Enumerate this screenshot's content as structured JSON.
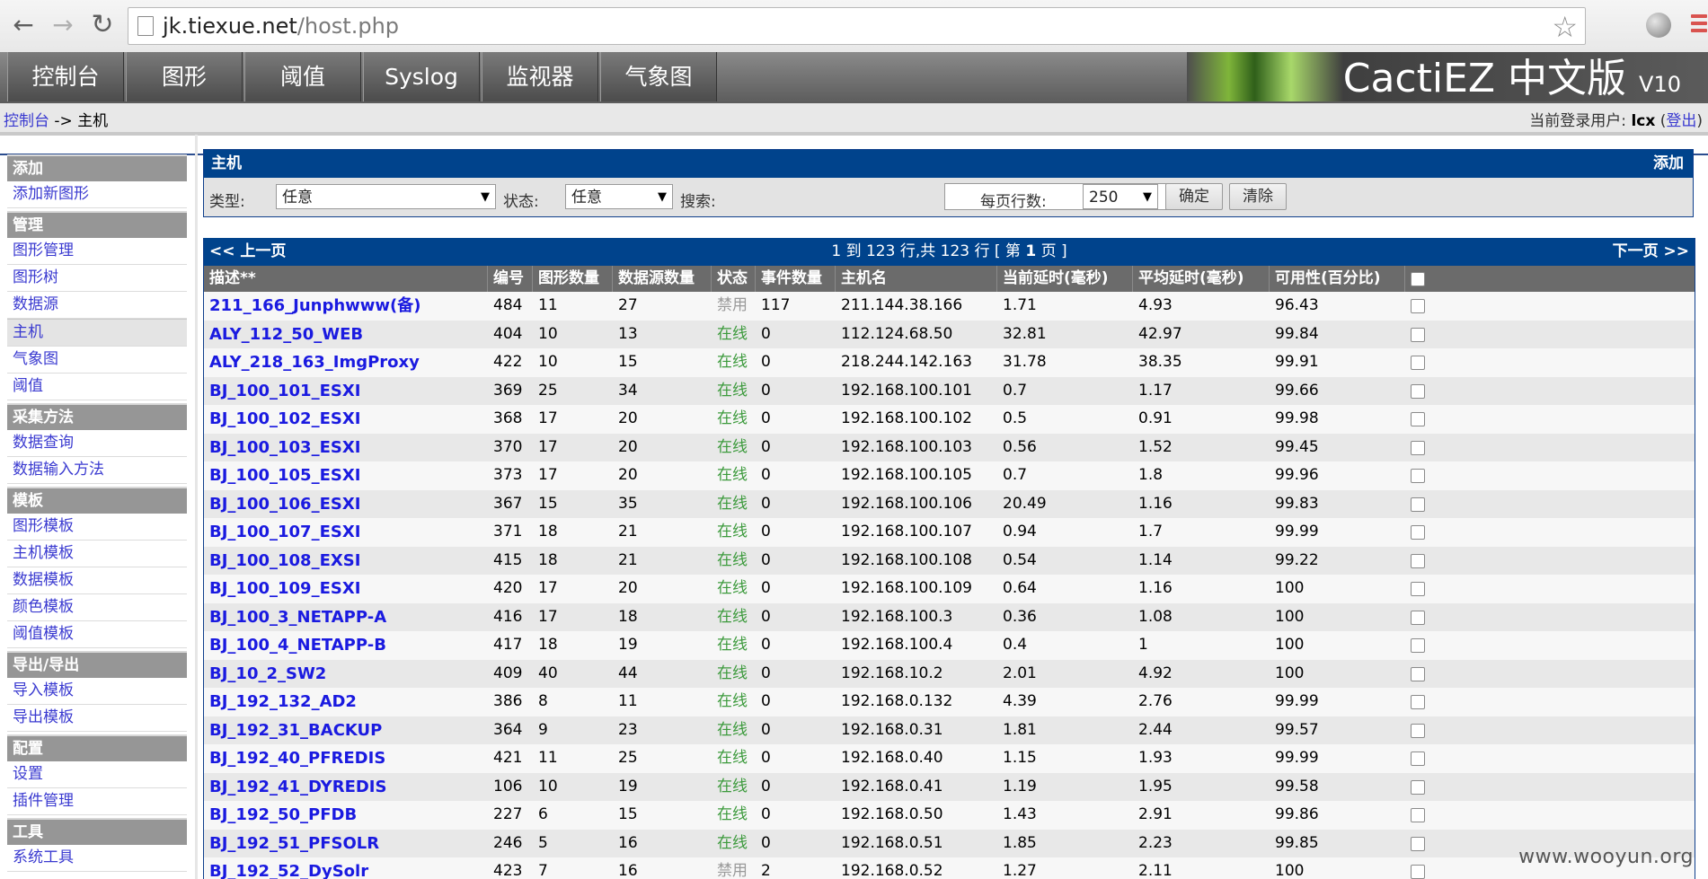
{
  "browser": {
    "url_host": "jk.tiexue.net",
    "url_path": "/host.php"
  },
  "tabs": [
    {
      "label": "控制台"
    },
    {
      "label": "图形"
    },
    {
      "label": "阈值"
    },
    {
      "label": "Syslog"
    },
    {
      "label": "监视器"
    },
    {
      "label": "气象图"
    }
  ],
  "brand": {
    "title": "CactiEZ 中文版",
    "version": "V10"
  },
  "breadcrumb": {
    "root": "控制台",
    "sep": " -> ",
    "current": "主机"
  },
  "login": {
    "prefix": "当前登录用户: ",
    "user": "lcx",
    "logout": "登出"
  },
  "sidebar": [
    {
      "type": "head",
      "label": "添加"
    },
    {
      "type": "item",
      "label": "添加新图形"
    },
    {
      "type": "head",
      "label": "管理"
    },
    {
      "type": "item",
      "label": "图形管理"
    },
    {
      "type": "item",
      "label": "图形树"
    },
    {
      "type": "item",
      "label": "数据源"
    },
    {
      "type": "item",
      "label": "主机",
      "active": true
    },
    {
      "type": "item",
      "label": "气象图"
    },
    {
      "type": "item",
      "label": "阈值"
    },
    {
      "type": "head",
      "label": "采集方法"
    },
    {
      "type": "item",
      "label": "数据查询"
    },
    {
      "type": "item",
      "label": "数据输入方法"
    },
    {
      "type": "head",
      "label": "模板"
    },
    {
      "type": "item",
      "label": "图形模板"
    },
    {
      "type": "item",
      "label": "主机模板"
    },
    {
      "type": "item",
      "label": "数据模板"
    },
    {
      "type": "item",
      "label": "颜色模板"
    },
    {
      "type": "item",
      "label": "阈值模板"
    },
    {
      "type": "head",
      "label": "导出/导出"
    },
    {
      "type": "item",
      "label": "导入模板"
    },
    {
      "type": "item",
      "label": "导出模板"
    },
    {
      "type": "head",
      "label": "配置"
    },
    {
      "type": "item",
      "label": "设置"
    },
    {
      "type": "item",
      "label": "插件管理"
    },
    {
      "type": "head",
      "label": "工具"
    },
    {
      "type": "item",
      "label": "系统工具"
    }
  ],
  "filter": {
    "title": "主机",
    "add_label": "添加",
    "type_label": "类型:",
    "type_value": "任意",
    "status_label": "状态:",
    "status_value": "任意",
    "search_label": "搜索:",
    "search_value": "",
    "rows_label": "每页行数:",
    "rows_value": "250",
    "go_label": "确定",
    "clear_label": "清除"
  },
  "pager": {
    "prev": "<< 上一页",
    "info_pre": "1 到 123 行,共 123 行 [ 第 ",
    "info_page": "1",
    "info_post": " 页 ]",
    "next": "下一页 >>"
  },
  "columns": [
    "描述**",
    "编号",
    "图形数量",
    "数据源数量",
    "状态",
    "事件数量",
    "主机名",
    "当前延时(毫秒)",
    "平均延时(毫秒)",
    "可用性(百分比)"
  ],
  "status_colors": {
    "online": "#3c9a3c",
    "disabled": "#9a9a9a"
  },
  "rows": [
    [
      "211_166_Junphwww(备)",
      "484",
      "11",
      "27",
      "禁用",
      "117",
      "211.144.38.166",
      "1.71",
      "4.93",
      "96.43"
    ],
    [
      "ALY_112_50_WEB",
      "404",
      "10",
      "13",
      "在线",
      "0",
      "112.124.68.50",
      "32.81",
      "42.97",
      "99.84"
    ],
    [
      "ALY_218_163_ImgProxy",
      "422",
      "10",
      "15",
      "在线",
      "0",
      "218.244.142.163",
      "31.78",
      "38.35",
      "99.91"
    ],
    [
      "BJ_100_101_ESXI",
      "369",
      "25",
      "34",
      "在线",
      "0",
      "192.168.100.101",
      "0.7",
      "1.17",
      "99.66"
    ],
    [
      "BJ_100_102_ESXI",
      "368",
      "17",
      "20",
      "在线",
      "0",
      "192.168.100.102",
      "0.5",
      "0.91",
      "99.98"
    ],
    [
      "BJ_100_103_ESXI",
      "370",
      "17",
      "20",
      "在线",
      "0",
      "192.168.100.103",
      "0.56",
      "1.52",
      "99.45"
    ],
    [
      "BJ_100_105_ESXI",
      "373",
      "17",
      "20",
      "在线",
      "0",
      "192.168.100.105",
      "0.7",
      "1.8",
      "99.96"
    ],
    [
      "BJ_100_106_ESXI",
      "367",
      "15",
      "35",
      "在线",
      "0",
      "192.168.100.106",
      "20.49",
      "1.16",
      "99.83"
    ],
    [
      "BJ_100_107_ESXI",
      "371",
      "18",
      "21",
      "在线",
      "0",
      "192.168.100.107",
      "0.94",
      "1.7",
      "99.99"
    ],
    [
      "BJ_100_108_EXSI",
      "415",
      "18",
      "21",
      "在线",
      "0",
      "192.168.100.108",
      "0.54",
      "1.14",
      "99.22"
    ],
    [
      "BJ_100_109_ESXI",
      "420",
      "17",
      "20",
      "在线",
      "0",
      "192.168.100.109",
      "0.64",
      "1.16",
      "100"
    ],
    [
      "BJ_100_3_NETAPP-A",
      "416",
      "17",
      "18",
      "在线",
      "0",
      "192.168.100.3",
      "0.36",
      "1.08",
      "100"
    ],
    [
      "BJ_100_4_NETAPP-B",
      "417",
      "18",
      "19",
      "在线",
      "0",
      "192.168.100.4",
      "0.4",
      "1",
      "100"
    ],
    [
      "BJ_10_2_SW2",
      "409",
      "40",
      "44",
      "在线",
      "0",
      "192.168.10.2",
      "2.01",
      "4.92",
      "100"
    ],
    [
      "BJ_192_132_AD2",
      "386",
      "8",
      "11",
      "在线",
      "0",
      "192.168.0.132",
      "4.39",
      "2.76",
      "99.99"
    ],
    [
      "BJ_192_31_BACKUP",
      "364",
      "9",
      "23",
      "在线",
      "0",
      "192.168.0.31",
      "1.81",
      "2.44",
      "99.57"
    ],
    [
      "BJ_192_40_PFREDIS",
      "421",
      "11",
      "25",
      "在线",
      "0",
      "192.168.0.40",
      "1.15",
      "1.93",
      "99.99"
    ],
    [
      "BJ_192_41_DYREDIS",
      "106",
      "10",
      "19",
      "在线",
      "0",
      "192.168.0.41",
      "1.19",
      "1.95",
      "99.58"
    ],
    [
      "BJ_192_50_PFDB",
      "227",
      "6",
      "15",
      "在线",
      "0",
      "192.168.0.50",
      "1.43",
      "2.91",
      "99.86"
    ],
    [
      "BJ_192_51_PFSOLR",
      "246",
      "5",
      "16",
      "在线",
      "0",
      "192.168.0.51",
      "1.85",
      "2.23",
      "99.85"
    ],
    [
      "BJ_192_52_DySolr",
      "423",
      "7",
      "16",
      "禁用",
      "2",
      "192.168.0.52",
      "1.27",
      "2.11",
      "100"
    ]
  ],
  "watermark": "www.wooyun.org"
}
